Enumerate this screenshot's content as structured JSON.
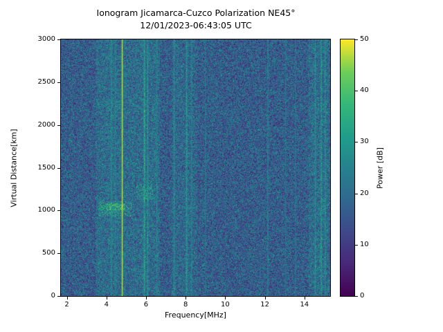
{
  "chart_data": {
    "type": "heatmap",
    "title": "Ionogram Jicamarca-Cuzco Polarization NE45°",
    "subtitle": "12/01/2023-06:43:05 UTC",
    "xlabel": "Frequency[MHz]",
    "ylabel": "Virtual Distance[km]",
    "colorbar_label": "Power [dB]",
    "xlim": [
      1.7,
      15.3
    ],
    "ylim": [
      0,
      3000
    ],
    "clim": [
      0,
      50
    ],
    "xticks": [
      2,
      4,
      6,
      8,
      10,
      12,
      14
    ],
    "yticks": [
      0,
      500,
      1000,
      1500,
      2000,
      2500,
      3000
    ],
    "colorbar_ticks": [
      0,
      10,
      20,
      30,
      40,
      50
    ],
    "colormap": "viridis",
    "colormap_stops": [
      [
        0.0,
        "#440154"
      ],
      [
        0.125,
        "#482878"
      ],
      [
        0.25,
        "#3e4989"
      ],
      [
        0.375,
        "#31688e"
      ],
      [
        0.5,
        "#26828e"
      ],
      [
        0.625,
        "#1f9e89"
      ],
      [
        0.75,
        "#35b779"
      ],
      [
        0.875,
        "#6ece58"
      ],
      [
        1.0,
        "#fde725"
      ]
    ],
    "noise": {
      "mean": 17,
      "spread": 9,
      "seed": 42
    },
    "column_bands": [
      {
        "freq_range": [
          3.5,
          6.7
        ],
        "boost": 3
      },
      {
        "freq_range": [
          7.3,
          8.6
        ],
        "boost": 2
      },
      {
        "freq_range": [
          14.2,
          15.3
        ],
        "boost": 3
      }
    ],
    "interference_lines": [
      {
        "freq": 4.25,
        "width": 0.05,
        "power": 30,
        "solid": false
      },
      {
        "freq": 4.45,
        "width": 0.04,
        "power": 27,
        "solid": false
      },
      {
        "freq": 4.8,
        "width": 0.035,
        "power": 50,
        "solid": true
      },
      {
        "freq": 5.92,
        "width": 0.05,
        "power": 38,
        "solid": false
      },
      {
        "freq": 6.08,
        "width": 0.04,
        "power": 34,
        "solid": false
      },
      {
        "freq": 6.55,
        "width": 0.04,
        "power": 28,
        "solid": false
      },
      {
        "freq": 7.42,
        "width": 0.04,
        "power": 32,
        "solid": false
      },
      {
        "freq": 8.05,
        "width": 0.05,
        "power": 34,
        "solid": false
      },
      {
        "freq": 8.3,
        "width": 0.04,
        "power": 30,
        "solid": false
      },
      {
        "freq": 9.0,
        "width": 0.03,
        "power": 25,
        "solid": false
      },
      {
        "freq": 12.15,
        "width": 0.04,
        "power": 28,
        "solid": false
      },
      {
        "freq": 13.05,
        "width": 0.03,
        "power": 25,
        "solid": false
      },
      {
        "freq": 13.55,
        "width": 0.03,
        "power": 26,
        "solid": false
      },
      {
        "freq": 14.55,
        "width": 0.04,
        "power": 32,
        "solid": false
      },
      {
        "freq": 14.85,
        "width": 0.04,
        "power": 36,
        "solid": false
      },
      {
        "freq": 15.05,
        "width": 0.035,
        "power": 34,
        "solid": false
      }
    ],
    "echo_regions": [
      {
        "freq_range": [
          3.6,
          5.25
        ],
        "alt_range": [
          930,
          1110
        ],
        "power": 37,
        "density": 0.45
      },
      {
        "freq_range": [
          4.0,
          4.9
        ],
        "alt_range": [
          1000,
          1080
        ],
        "power": 42,
        "density": 0.6
      },
      {
        "freq_range": [
          5.5,
          6.35
        ],
        "alt_range": [
          1120,
          1310
        ],
        "power": 36,
        "density": 0.4
      },
      {
        "freq_range": [
          4.0,
          4.8
        ],
        "alt_range": [
          2050,
          2300
        ],
        "power": 32,
        "density": 0.2
      }
    ]
  }
}
